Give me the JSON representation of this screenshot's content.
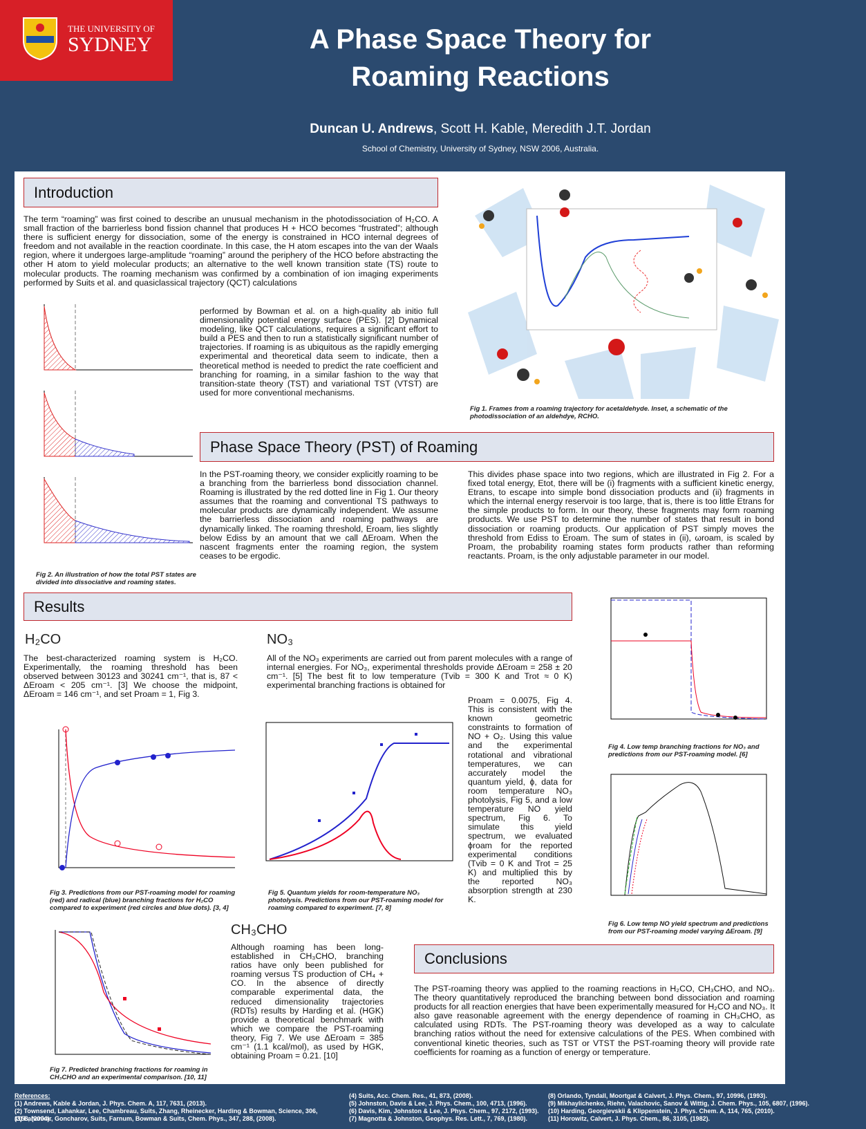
{
  "header": {
    "university": [
      "THE UNIVERSITY OF",
      "SYDNEY"
    ],
    "title": "A Phase Space Theory for Roaming Reactions",
    "lead_author": "Duncan U. Andrews",
    "other_authors": ", Scott H. Kable, Meredith J.T. Jordan",
    "affiliation": "School of Chemistry, University of Sydney, NSW 2006, Australia."
  },
  "introduction": {
    "heading": "Introduction",
    "text_1": "The term “roaming” was first coined to describe an unusual mechanism in the photodissociation of H₂CO. A small fraction of the barrierless bond fission channel that produces H + HCO becomes “frustrated”; although there is sufficient energy for dissociation, some of the energy is constrained in HCO internal degrees of freedom and not available in the reaction coordinate. In this case, the H atom escapes into the van der Waals region, where it undergoes large-amplitude “roaming” around the periphery of the HCO before abstracting the other H atom to yield molecular products; an alternative to the well known transition state (TS) route to molecular products. The roaming mechanism was confirmed by a combination of ion imaging experiments performed by Suits et al. and quasiclassical trajectory (QCT) calculations",
    "text_2": "performed by Bowman et al. on a high-quality ab initio full dimensionality potential energy surface (PES). [2] Dynamical modeling, like QCT calculations, requires a significant effort to build a PES and then to run a statistically significant number of trajectories. If roaming is as ubiquitous as the rapidly emerging experimental and theoretical data seem to indicate, then a theoretical method is needed to predict the rate coefficient and branching for roaming, in a similar fashion to the way that transition-state theory (TST) and variational TST (VTST) are used for more conventional mechanisms.",
    "fig1_caption": "Fig 1. Frames from a roaming trajectory for acetaldehyde. Inset, a schematic of the photodissociation of an aldehdye, RCHO.",
    "fig2_caption": "Fig 2. An illustration of how the total PST states are divided into dissociative and roaming states."
  },
  "pst": {
    "heading": "Phase Space Theory (PST) of Roaming",
    "col_1": "In the PST-roaming theory, we consider explicitly roaming to be a branching from the barrierless bond dissociation channel. Roaming is illustrated by the red dotted line in Fig 1. Our theory assumes that the roaming and conventional TS pathways to molecular products are dynamically independent. We assume the barrierless dissociation and roaming pathways are dynamically linked. The roaming threshold, Eroam, lies slightly below Ediss by an amount that we call ΔEroam. When the nascent fragments enter the roaming region, the system ceases to be ergodic.",
    "col_2": "This divides phase space into two regions, which are illustrated in Fig 2. For a fixed total energy, Etot, there will be (i) fragments with a sufficient kinetic energy, Etrans, to escape into simple bond dissociation products and (ii) fragments in which the internal energy reservoir is too large, that is, there is too little Etrans for the simple products to form. In our theory, these fragments may form roaming products. We use PST to determine the number of states that result in bond dissociation or roaming products. Our application of PST simply moves the threshold from Ediss to Eroam. The sum of states in (ii), ωroam, is scaled by Proam, the probability roaming states form products rather than reforming reactants. Proam, is the only adjustable parameter in our model."
  },
  "results": {
    "heading": "Results",
    "h2co": {
      "heading": "H₂CO",
      "text": "The best-characterized roaming system is H₂CO. Experimentally, the roaming threshold has been observed between 30123 and 30241 cm⁻¹, that is, 87 < ΔEroam < 205 cm⁻¹. [3] We choose the midpoint, ΔEroam = 146 cm⁻¹, and set Proam = 1, Fig 3.",
      "caption": "Fig 3. Predictions from our PST-roaming model for roaming (red) and radical (blue) branching fractions for H₂CO compared to experiment (red circles and blue dots). [3, 4]"
    },
    "no3": {
      "heading": "NO₃",
      "text_1": "All of the NO₃ experiments are carried out from parent molecules with a range of internal energies. For NO₃, experimental thresholds provide ΔEroam = 258 ± 20 cm⁻¹. [5] The best fit to low temperature (Tvib = 300 K and Trot ≈ 0 K) experimental branching fractions is obtained for",
      "text_2": "Proam = 0.0075, Fig 4. This is consistent with the known geometric constraints to formation of NO + O₂. Using this value and the experimental rotational and vibrational temperatures, we can accurately model the quantum yield, ϕ, data for room temperature NO₃ photolysis, Fig 5, and a low temperature NO yield spectrum, Fig 6. To simulate this yield spectrum, we evaluated ϕroam for the reported experimental conditions (Tvib = 0 K and Trot = 25 K) and multiplied this by the reported NO₃ absorption strength at 230 K.",
      "caption": "Fig 5. Quantum yields for room-temperature NO₃ photolysis. Predictions from our PST-roaming model for roaming compared to experiment. [7, 8]"
    },
    "fig4_caption": "Fig 4. Low temp branching fractions for NO₃ and predictions from our PST-roaming model. [6]",
    "fig6_caption": "Fig 6. Low temp NO yield spectrum and predictions from our PST-roaming model varying ΔEroam. [9]",
    "ch3cho": {
      "heading": "CH₃CHO",
      "text": "Although roaming has been long-established in CH₃CHO, branching ratios have only been published for roaming versus TS production of CH₄ + CO. In the absence of directly comparable experimental data, the reduced dimensionality trajectories (RDTs) results by Harding et al. (HGK) provide a theoretical benchmark with which we compare the PST-roaming theory, Fig 7. We use ΔEroam = 385 cm⁻¹ (1.1 kcal/mol), as used by HGK, obtaining Proam = 0.21. [10]",
      "caption": "Fig 7. Predicted branching fractions for roaming in CH₃CHO and an experimental comparison. [10, 11]"
    }
  },
  "conclusions": {
    "heading": "Conclusions",
    "text": "The PST-roaming theory was applied to the roaming reactions in H₂CO, CH₃CHO, and NO₃. The theory quantitatively reproduced the branching between bond dissociation and roaming products for all reaction energies that have been experimentally measured for H₂CO and NO₃. It also gave reasonable agreement with the energy dependence of roaming in CH₃CHO, as calculated using RDTs. The PST-roaming theory was developed as a way to calculate branching ratios without the need for extensive calculations of the PES. When combined with conventional kinetic theories, such as TST or VTST the PST-roaming theory will provide rate coefficients for roaming as a function of energy or temperature."
  },
  "references": {
    "heading": "References:",
    "items": [
      "(1) Andrews, Kable & Jordan, J. Phys. Chem. A, 117, 7631, (2013).",
      "(2) Townsend, Lahankar, Lee, Chambreau, Suits, Zhang, Rheinecker, Harding & Bowman, Science, 306, 1158, (2004).",
      "(3) Lahankar, Goncharov, Suits, Farnum, Bowman & Suits, Chem. Phys., 347, 288, (2008).",
      "(4) Suits, Acc. Chem. Res., 41, 873, (2008).",
      "(5) Johnston, Davis & Lee, J. Phys. Chem., 100, 4713, (1996).",
      "(6) Davis, Kim, Johnston & Lee, J. Phys. Chem., 97, 2172, (1993).",
      "(7) Magnotta & Johnston, Geophys. Res. Lett., 7, 769, (1980).",
      "(8) Orlando, Tyndall, Moortgat & Calvert, J. Phys. Chem., 97, 10996, (1993).",
      "(9) Mikhaylichenko, Riehn, Valachovic, Sanov & Wittig, J. Chem. Phys., 105, 6807, (1996).",
      "(10) Harding, Georgievskii & Klippenstein, J. Phys. Chem. A, 114, 765, (2010).",
      "(11) Horowitz, Calvert, J. Phys. Chem., 86, 3105, (1982)."
    ]
  }
}
